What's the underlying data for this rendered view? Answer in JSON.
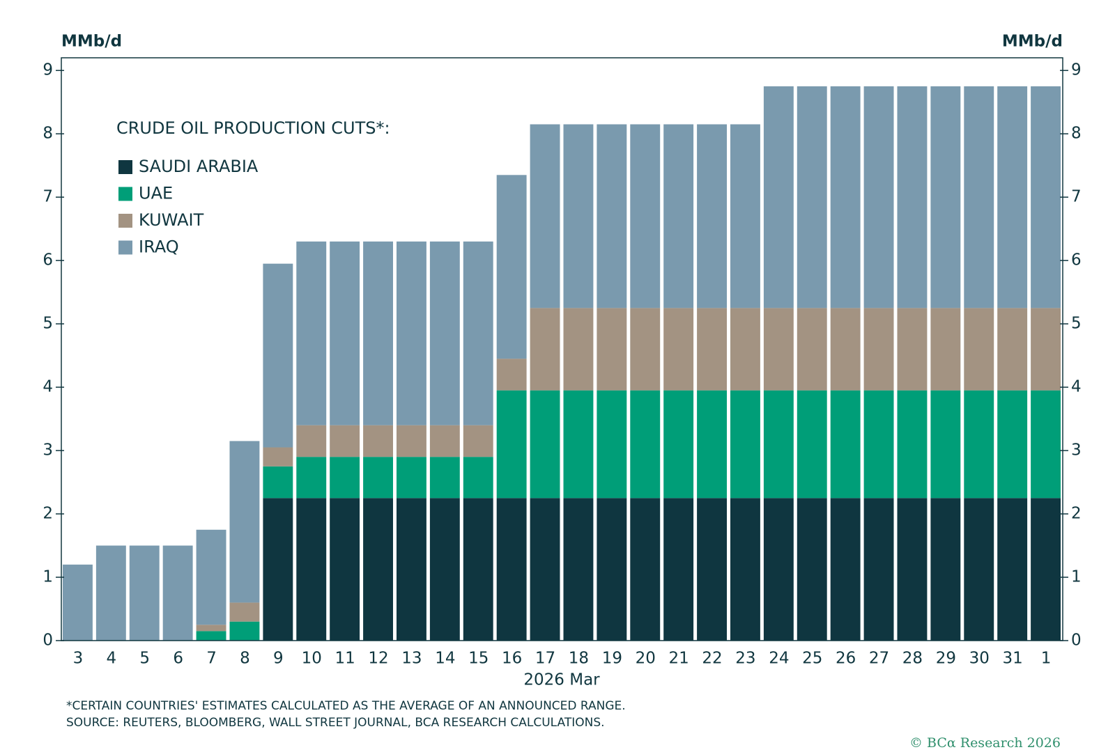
{
  "chart_data": {
    "type": "stacked_bar",
    "y_label_left": "MMb/d",
    "y_label_right": "MMb/d",
    "legend_title": "CRUDE OIL PRODUCTION CUTS*:",
    "x_label": "2026 Mar",
    "footnote": "*CERTAIN COUNTRIES' ESTIMATES CALCULATED AS THE AVERAGE OF AN ANNOUNCED RANGE.",
    "source": "SOURCE: REUTERS, BLOOMBERG, WALL STREET JOURNAL, BCA RESEARCH CALCULATIONS.",
    "copyright": "© BCα Research 2026",
    "categories": [
      "3",
      "4",
      "5",
      "6",
      "7",
      "8",
      "9",
      "10",
      "11",
      "12",
      "13",
      "14",
      "15",
      "16",
      "17",
      "18",
      "19",
      "20",
      "21",
      "22",
      "23",
      "24",
      "25",
      "26",
      "27",
      "28",
      "29",
      "30",
      "31",
      "1"
    ],
    "series": [
      {
        "name": "SAUDI ARABIA",
        "color": "#0f3640",
        "values": [
          0,
          0,
          0,
          0,
          0,
          0,
          2.25,
          2.25,
          2.25,
          2.25,
          2.25,
          2.25,
          2.25,
          2.25,
          2.25,
          2.25,
          2.25,
          2.25,
          2.25,
          2.25,
          2.25,
          2.25,
          2.25,
          2.25,
          2.25,
          2.25,
          2.25,
          2.25,
          2.25,
          2.25
        ]
      },
      {
        "name": "UAE",
        "color": "#009e78",
        "values": [
          0,
          0,
          0,
          0,
          0.15,
          0.3,
          0.5,
          0.65,
          0.65,
          0.65,
          0.65,
          0.65,
          0.65,
          1.7,
          1.7,
          1.7,
          1.7,
          1.7,
          1.7,
          1.7,
          1.7,
          1.7,
          1.7,
          1.7,
          1.7,
          1.7,
          1.7,
          1.7,
          1.7,
          1.7
        ]
      },
      {
        "name": "KUWAIT",
        "color": "#a39382",
        "values": [
          0,
          0,
          0,
          0,
          0.1,
          0.3,
          0.3,
          0.5,
          0.5,
          0.5,
          0.5,
          0.5,
          0.5,
          0.5,
          1.3,
          1.3,
          1.3,
          1.3,
          1.3,
          1.3,
          1.3,
          1.3,
          1.3,
          1.3,
          1.3,
          1.3,
          1.3,
          1.3,
          1.3,
          1.3
        ]
      },
      {
        "name": "IRAQ",
        "color": "#7a9aae",
        "values": [
          1.2,
          1.5,
          1.5,
          1.5,
          1.5,
          2.55,
          2.9,
          2.9,
          2.9,
          2.9,
          2.9,
          2.9,
          2.9,
          2.9,
          2.9,
          2.9,
          2.9,
          2.9,
          2.9,
          2.9,
          2.9,
          3.5,
          3.5,
          3.5,
          3.5,
          3.5,
          3.5,
          3.5,
          3.5,
          3.5
        ]
      }
    ],
    "ylim": [
      0,
      9.2
    ],
    "yticks": [
      0,
      1,
      2,
      3,
      4,
      5,
      6,
      7,
      8,
      9
    ]
  }
}
